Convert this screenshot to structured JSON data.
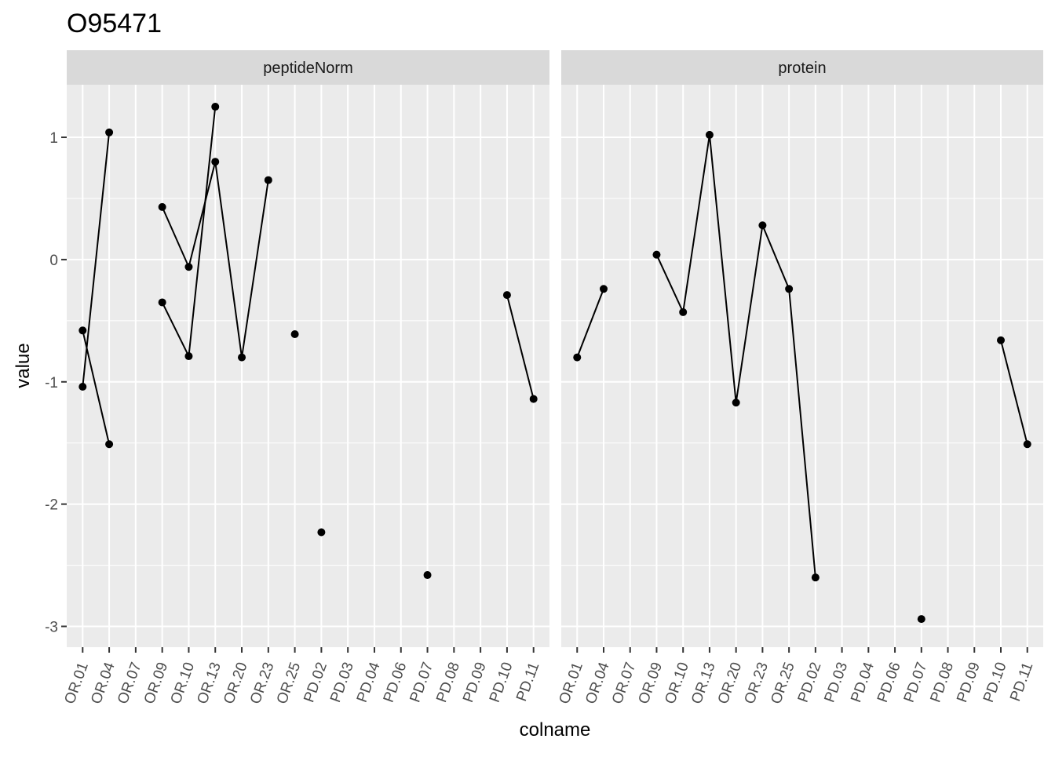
{
  "chart_data": {
    "type": "line",
    "title": "O95471",
    "xlabel": "colname",
    "ylabel": "value",
    "ylim": [
      -3.17,
      1.43
    ],
    "yticks": [
      -3,
      -2,
      -1,
      0,
      1
    ],
    "ytick_labels": [
      "-3",
      "-2",
      "-1",
      "0",
      "1"
    ],
    "categories": [
      "OR.01",
      "OR.04",
      "OR.07",
      "OR.09",
      "OR.10",
      "OR.13",
      "OR.20",
      "OR.23",
      "OR.25",
      "PD.02",
      "PD.03",
      "PD.04",
      "PD.06",
      "PD.07",
      "PD.08",
      "PD.09",
      "PD.10",
      "PD.11"
    ],
    "grid": true,
    "panels": [
      {
        "strip": "peptideNorm",
        "series": [
          {
            "points": [
              [
                "OR.01",
                -1.04
              ],
              [
                "OR.04",
                1.04
              ]
            ]
          },
          {
            "points": [
              [
                "OR.01",
                -0.58
              ],
              [
                "OR.04",
                -1.51
              ]
            ]
          },
          {
            "points": [
              [
                "OR.09",
                0.43
              ],
              [
                "OR.10",
                -0.06
              ],
              [
                "OR.13",
                0.8
              ],
              [
                "OR.20",
                -0.8
              ],
              [
                "OR.23",
                0.65
              ]
            ]
          },
          {
            "points": [
              [
                "OR.09",
                -0.35
              ],
              [
                "OR.10",
                -0.79
              ],
              [
                "OR.13",
                1.25
              ]
            ]
          },
          {
            "points": [
              [
                "OR.25",
                -0.61
              ]
            ]
          },
          {
            "points": [
              [
                "PD.02",
                -2.23
              ]
            ]
          },
          {
            "points": [
              [
                "PD.07",
                -2.58
              ]
            ]
          },
          {
            "points": [
              [
                "PD.10",
                -0.29
              ],
              [
                "PD.11",
                -1.14
              ]
            ]
          }
        ]
      },
      {
        "strip": "protein",
        "series": [
          {
            "points": [
              [
                "OR.01",
                -0.8
              ],
              [
                "OR.04",
                -0.24
              ]
            ]
          },
          {
            "points": [
              [
                "OR.09",
                0.04
              ],
              [
                "OR.10",
                -0.43
              ],
              [
                "OR.13",
                1.02
              ],
              [
                "OR.20",
                -1.17
              ],
              [
                "OR.23",
                0.28
              ],
              [
                "OR.25",
                -0.24
              ],
              [
                "PD.02",
                -2.6
              ]
            ]
          },
          {
            "points": [
              [
                "PD.07",
                -2.94
              ]
            ]
          },
          {
            "points": [
              [
                "PD.10",
                -0.66
              ],
              [
                "PD.11",
                -1.51
              ]
            ]
          }
        ]
      }
    ]
  },
  "colors": {
    "panel_bg": "#ebebeb",
    "strip_bg": "#d9d9d9",
    "grid": "#ffffff",
    "line": "#000000",
    "point": "#000000",
    "axis_text": "#4d4d4d",
    "title_text": "#000000"
  }
}
